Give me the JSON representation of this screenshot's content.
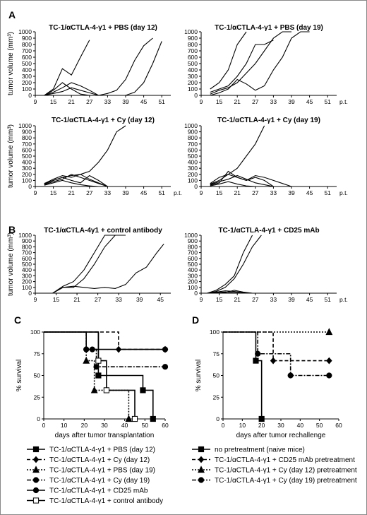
{
  "panels": {
    "A": "A",
    "B": "B",
    "C": "C",
    "D": "D"
  },
  "chart_data": [
    {
      "id": "A1",
      "type": "line",
      "title": "TC-1/αCTLA-4-γ1 + PBS (day 12)",
      "ylabel": "tumor volume (mm³)",
      "x_ticks": [
        9,
        15,
        21,
        27,
        33,
        39,
        45,
        51
      ],
      "y_ticks": [
        0,
        100,
        200,
        300,
        400,
        500,
        600,
        700,
        800,
        900,
        1000
      ],
      "xlim": [
        9,
        54
      ],
      "ylim": [
        0,
        1000
      ],
      "series": [
        {
          "x": [
            12,
            15,
            18,
            21,
            24,
            27
          ],
          "y": [
            0,
            100,
            420,
            320,
            600,
            870
          ]
        },
        {
          "x": [
            12,
            15,
            18,
            21,
            24,
            27,
            30
          ],
          "y": [
            0,
            80,
            200,
            100,
            20,
            0,
            0
          ]
        },
        {
          "x": [
            12,
            15,
            18,
            21,
            24,
            27,
            30,
            33,
            36,
            39,
            42,
            45,
            48
          ],
          "y": [
            0,
            50,
            120,
            200,
            150,
            80,
            0,
            30,
            80,
            250,
            550,
            780,
            900
          ]
        },
        {
          "x": [
            12,
            15,
            18,
            21,
            24,
            27,
            30,
            33,
            36,
            39,
            42,
            45,
            48,
            51
          ],
          "y": [
            0,
            30,
            60,
            120,
            80,
            40,
            0,
            0,
            0,
            0,
            50,
            200,
            500,
            850
          ]
        }
      ]
    },
    {
      "id": "A2",
      "type": "line",
      "title": "TC-1/αCTLA-4-γ1 + PBS (day 19)",
      "x_ticks": [
        9,
        15,
        21,
        27,
        33,
        39,
        45,
        51
      ],
      "y_ticks": [
        0,
        100,
        200,
        300,
        400,
        500,
        600,
        700,
        800,
        900,
        1000
      ],
      "xlim": [
        9,
        54
      ],
      "ylim": [
        0,
        1000
      ],
      "x_tail_label": "p.t.",
      "series": [
        {
          "x": [
            12,
            15,
            18,
            21,
            24
          ],
          "y": [
            100,
            200,
            400,
            800,
            1000
          ]
        },
        {
          "x": [
            12,
            15,
            18,
            21,
            24,
            27,
            30,
            33
          ],
          "y": [
            50,
            100,
            150,
            300,
            500,
            800,
            800,
            870
          ]
        },
        {
          "x": [
            12,
            15,
            18,
            21,
            24,
            27,
            30,
            33,
            36,
            39
          ],
          "y": [
            20,
            80,
            120,
            200,
            350,
            500,
            700,
            900,
            1000,
            1000
          ]
        },
        {
          "x": [
            12,
            15,
            18,
            21,
            24,
            27,
            30,
            33,
            36,
            39,
            42,
            45
          ],
          "y": [
            0,
            40,
            100,
            250,
            180,
            80,
            150,
            400,
            600,
            900,
            1000,
            1000
          ]
        }
      ]
    },
    {
      "id": "A3",
      "type": "line",
      "title": "TC-1/αCTLA-4-γ1 + Cy (day 12)",
      "ylabel": "tumor volume (mm³)",
      "x_ticks": [
        9,
        15,
        21,
        27,
        33,
        39,
        45,
        51
      ],
      "y_ticks": [
        0,
        100,
        200,
        300,
        400,
        500,
        600,
        700,
        800,
        900,
        1000
      ],
      "xlim": [
        9,
        54
      ],
      "ylim": [
        0,
        1000
      ],
      "x_tail_label": "p.t.",
      "series": [
        {
          "x": [
            12,
            15,
            18,
            21,
            24,
            27,
            30,
            33,
            36,
            39
          ],
          "y": [
            50,
            100,
            150,
            180,
            200,
            250,
            400,
            600,
            900,
            1000
          ]
        },
        {
          "x": [
            12,
            15,
            18,
            21,
            24,
            27,
            30,
            33
          ],
          "y": [
            50,
            120,
            180,
            150,
            200,
            120,
            60,
            0
          ]
        },
        {
          "x": [
            12,
            15,
            18,
            21,
            24,
            27,
            30,
            33
          ],
          "y": [
            40,
            100,
            150,
            100,
            60,
            180,
            100,
            0
          ]
        },
        {
          "x": [
            12,
            15,
            18,
            21,
            24,
            27,
            30,
            33
          ],
          "y": [
            30,
            80,
            120,
            200,
            150,
            100,
            50,
            0
          ]
        },
        {
          "x": [
            12,
            15,
            18,
            21,
            24,
            27,
            30,
            33
          ],
          "y": [
            20,
            60,
            100,
            60,
            30,
            10,
            0,
            0
          ]
        }
      ]
    },
    {
      "id": "A4",
      "type": "line",
      "title": "TC-1/αCTLA-4-γ1 + Cy (day 19)",
      "x_ticks": [
        9,
        15,
        21,
        27,
        33,
        39,
        45,
        51
      ],
      "y_ticks": [
        0,
        100,
        200,
        300,
        400,
        500,
        600,
        700,
        800,
        900,
        1000
      ],
      "xlim": [
        9,
        54
      ],
      "ylim": [
        0,
        1000
      ],
      "x_tail_label": "p.t.",
      "series": [
        {
          "x": [
            12,
            15,
            18,
            21,
            24,
            27,
            30
          ],
          "y": [
            50,
            150,
            200,
            300,
            500,
            700,
            1000
          ]
        },
        {
          "x": [
            12,
            15,
            18,
            21,
            24,
            27,
            30,
            33,
            36,
            39
          ],
          "y": [
            40,
            100,
            200,
            150,
            100,
            180,
            150,
            100,
            50,
            0
          ]
        },
        {
          "x": [
            12,
            15,
            18,
            21,
            24,
            27,
            30,
            33
          ],
          "y": [
            30,
            80,
            120,
            180,
            120,
            60,
            30,
            0
          ]
        },
        {
          "x": [
            12,
            15,
            18,
            21,
            24,
            27,
            30,
            33
          ],
          "y": [
            20,
            60,
            250,
            150,
            100,
            150,
            100,
            0
          ]
        },
        {
          "x": [
            12,
            15,
            18,
            21,
            24,
            27,
            30
          ],
          "y": [
            10,
            40,
            80,
            40,
            10,
            0,
            0
          ]
        }
      ]
    },
    {
      "id": "B1",
      "type": "line",
      "title": "TC-1/αCTLA-4γ1 + control antibody",
      "ylabel": "tumor volume (mm³)",
      "x_ticks": [
        9,
        15,
        21,
        27,
        33,
        39,
        45
      ],
      "y_ticks": [
        0,
        100,
        200,
        300,
        400,
        500,
        600,
        700,
        800,
        900,
        1000
      ],
      "xlim": [
        9,
        48
      ],
      "ylim": [
        0,
        1000
      ],
      "series": [
        {
          "x": [
            11,
            14,
            17,
            20,
            23,
            26,
            29,
            32
          ],
          "y": [
            0,
            0,
            120,
            200,
            400,
            700,
            1000,
            1000
          ]
        },
        {
          "x": [
            11,
            14,
            17,
            20,
            23,
            26,
            29,
            32,
            35
          ],
          "y": [
            0,
            0,
            100,
            100,
            250,
            500,
            800,
            1000,
            1000
          ]
        },
        {
          "x": [
            11,
            14,
            17,
            20,
            23,
            26,
            29,
            32,
            35,
            38,
            41,
            44,
            46
          ],
          "y": [
            0,
            0,
            100,
            120,
            100,
            80,
            100,
            80,
            150,
            350,
            450,
            700,
            850
          ]
        }
      ]
    },
    {
      "id": "B2",
      "type": "line",
      "title": "TC-1/αCTLA-4-γ1 + CD25 mAb",
      "x_ticks": [
        9,
        15,
        21,
        27,
        33,
        39,
        45,
        51
      ],
      "y_ticks": [
        0,
        100,
        200,
        300,
        400,
        500,
        600,
        700,
        800,
        900,
        1000
      ],
      "xlim": [
        9,
        54
      ],
      "ylim": [
        0,
        1000
      ],
      "x_tail_label": "p.t.",
      "series": [
        {
          "x": [
            11,
            14,
            17,
            20,
            23,
            26
          ],
          "y": [
            0,
            50,
            150,
            300,
            700,
            1000
          ]
        },
        {
          "x": [
            11,
            14,
            17,
            20,
            23,
            26,
            29
          ],
          "y": [
            0,
            30,
            100,
            250,
            500,
            800,
            1000
          ]
        },
        {
          "x": [
            11,
            14,
            17,
            20,
            23,
            26
          ],
          "y": [
            0,
            20,
            40,
            30,
            10,
            0
          ]
        },
        {
          "x": [
            11,
            14,
            17,
            20,
            23,
            26
          ],
          "y": [
            0,
            10,
            20,
            10,
            0,
            0
          ]
        },
        {
          "x": [
            11,
            14,
            17,
            20,
            23,
            26
          ],
          "y": [
            0,
            0,
            10,
            50,
            20,
            0
          ]
        }
      ]
    },
    {
      "id": "C",
      "type": "line",
      "ylabel": "% survival",
      "xlabel": "days after tumor transplantation",
      "x_ticks": [
        0,
        10,
        20,
        30,
        40,
        50,
        60
      ],
      "y_ticks": [
        0,
        25,
        50,
        75,
        100
      ],
      "xlim": [
        0,
        60
      ],
      "ylim": [
        0,
        100
      ],
      "legend": [
        "TC-1/αCTLA-4-γ1 + PBS (day 12)",
        "TC-1/αCTLA-4-γ1 + Cy (day 12)",
        "TC-1/αCTLA-4-γ1 + PBS (day 19)",
        "TC-1/αCTLA-4-γ1 + Cy (day 19)",
        "TC-1/αCTLA-4-γ1 + CD25 mAb",
        "TC-1/αCTLA-4-γ1 + control antibody"
      ],
      "series": [
        {
          "name": "TC-1/αCTLA-4-γ1 + PBS (day 12)",
          "x": [
            0,
            27,
            27,
            49,
            49,
            54,
            54
          ],
          "y": [
            100,
            100,
            50,
            50,
            33,
            33,
            0
          ]
        },
        {
          "name": "TC-1/αCTLA-4-γ1 + Cy (day 12)",
          "x": [
            0,
            37,
            37,
            60
          ],
          "y": [
            100,
            100,
            80,
            80
          ]
        },
        {
          "name": "TC-1/αCTLA-4-γ1 + PBS (day 19)",
          "x": [
            0,
            21,
            21,
            25,
            25,
            42,
            42
          ],
          "y": [
            100,
            100,
            67,
            67,
            33,
            33,
            0
          ]
        },
        {
          "name": "TC-1/αCTLA-4-γ1 + Cy (day 19)",
          "x": [
            0,
            21,
            21,
            26,
            26,
            60
          ],
          "y": [
            100,
            100,
            80,
            80,
            60,
            60
          ]
        },
        {
          "name": "TC-1/αCTLA-4-γ1 + CD25 mAb",
          "x": [
            0,
            21,
            21,
            24,
            24,
            60
          ],
          "y": [
            100,
            100,
            80,
            80,
            80,
            80
          ]
        },
        {
          "name": "TC-1/αCTLA-4-γ1 + control antibody",
          "x": [
            0,
            27,
            27,
            31,
            31,
            45,
            45
          ],
          "y": [
            100,
            100,
            67,
            67,
            33,
            33,
            0
          ]
        }
      ]
    },
    {
      "id": "D",
      "type": "line",
      "ylabel": "% survival",
      "xlabel": "days after tumor rechallenge",
      "x_ticks": [
        0,
        10,
        20,
        30,
        40,
        50,
        60
      ],
      "y_ticks": [
        0,
        25,
        50,
        75,
        100
      ],
      "xlim": [
        0,
        60
      ],
      "ylim": [
        0,
        100
      ],
      "legend": [
        "no pretreatment (naive mice)",
        "TC-1/αCTLA-4-γ1 + CD25 mAb pretreatment",
        "TC-1/αCTLA-4-γ1 + Cy (day 12) pretreatment",
        "TC-1/αCTLA-4-γ1 + Cy (day 19) pretreatment"
      ],
      "series": [
        {
          "name": "no pretreatment (naive mice)",
          "x": [
            0,
            17,
            17,
            20,
            20
          ],
          "y": [
            100,
            100,
            67,
            67,
            0
          ]
        },
        {
          "name": "TC-1/αCTLA-4-γ1 + CD25 mAb pretreatment",
          "x": [
            0,
            26,
            26,
            55
          ],
          "y": [
            100,
            100,
            67,
            67
          ]
        },
        {
          "name": "TC-1/αCTLA-4-γ1 + Cy (day 12) pretreatment",
          "x": [
            0,
            55
          ],
          "y": [
            100,
            100
          ]
        },
        {
          "name": "TC-1/αCTLA-4-γ1 + Cy (day 19) pretreatment",
          "x": [
            0,
            18,
            18,
            35,
            35,
            55
          ],
          "y": [
            100,
            100,
            75,
            75,
            50,
            50
          ]
        }
      ]
    }
  ]
}
